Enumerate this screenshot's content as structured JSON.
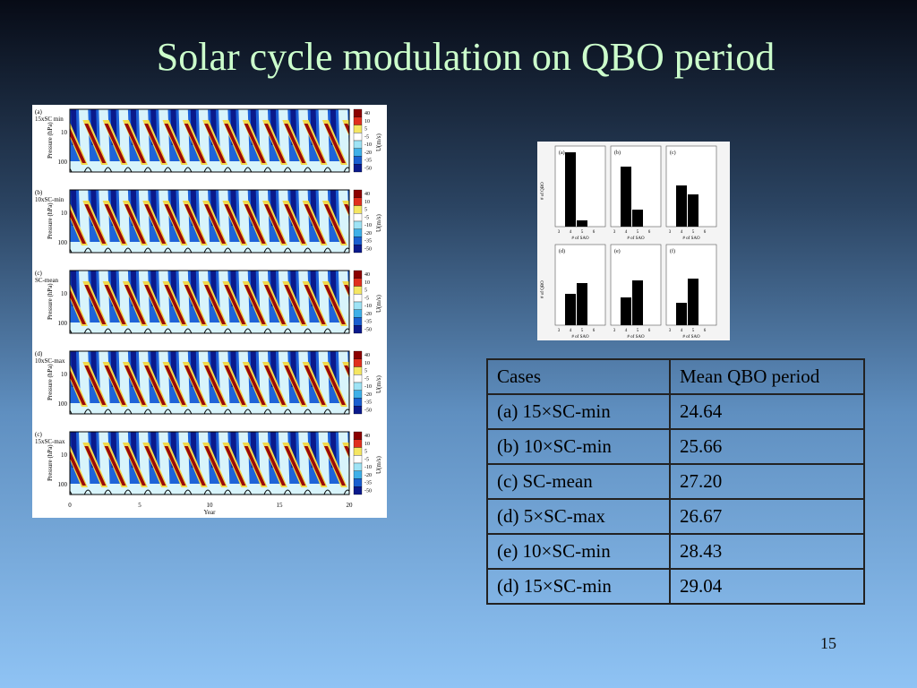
{
  "title": "Solar cycle modulation on QBO period",
  "contour_figure": {
    "panels": [
      {
        "label": "(a)",
        "case": "15xSC min"
      },
      {
        "label": "(b)",
        "case": "10xSC-min"
      },
      {
        "label": "(c)",
        "case": "SC-mean"
      },
      {
        "label": "(d)",
        "case": "10xSC-max"
      },
      {
        "label": "(c)",
        "case": "15xSC-max"
      }
    ],
    "y_label": "Pressure (hPa)",
    "y_ticks": [
      "10",
      "100"
    ],
    "colorbar_title": "U(m/s)",
    "colorbar_ticks": [
      "40",
      "10",
      "5",
      "-5",
      "-10",
      "-20",
      "-35",
      "-50"
    ],
    "x_label": "Year",
    "x_ticks": [
      "0",
      "5",
      "10",
      "15",
      "20"
    ]
  },
  "bar_figure": {
    "ylim": [
      0,
      90
    ],
    "panels": [
      {
        "label": "(a)",
        "values": [
          83,
          7
        ]
      },
      {
        "label": "(b)",
        "values": [
          67,
          19
        ]
      },
      {
        "label": "(c)",
        "values": [
          46,
          36
        ]
      },
      {
        "label": "(d)",
        "values": [
          35,
          47
        ]
      },
      {
        "label": "(e)",
        "values": [
          31,
          50
        ]
      },
      {
        "label": "(f)",
        "values": [
          25,
          52
        ]
      }
    ],
    "x_ticks": [
      "3",
      "4",
      "5",
      "6"
    ],
    "x_label": "# of SAO",
    "y_label": "# of QBO"
  },
  "table": {
    "header": [
      "Cases",
      "Mean QBO period"
    ],
    "rows": [
      [
        "(a) 15×SC-min",
        "24.64"
      ],
      [
        "(b) 10×SC-min",
        "25.66"
      ],
      [
        "(c) SC-mean",
        "27.20"
      ],
      [
        "(d) 5×SC-max",
        "26.67"
      ],
      [
        "(e) 10×SC-min",
        "28.43"
      ],
      [
        "(d) 15×SC-min",
        "29.04"
      ]
    ]
  },
  "page_number": "15"
}
